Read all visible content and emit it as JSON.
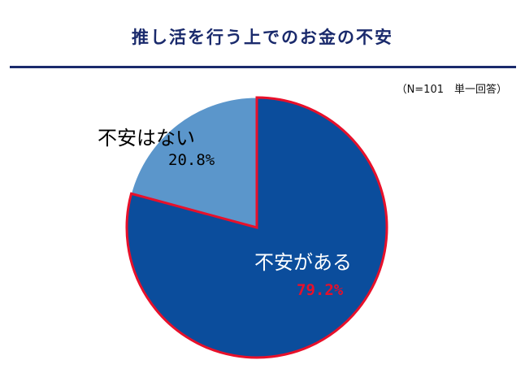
{
  "chart_data": {
    "type": "pie",
    "title": "推し活を行う上でのお金の不安",
    "note": "（N=101　単一回答）",
    "slices": [
      {
        "name": "不安がある",
        "value": 79.2,
        "label": "79.2%",
        "color": "#0b4d9c"
      },
      {
        "name": "不安はない",
        "value": 20.8,
        "label": "20.8%",
        "color": "#5b96cb"
      }
    ],
    "outline_color": "#e8102a"
  }
}
